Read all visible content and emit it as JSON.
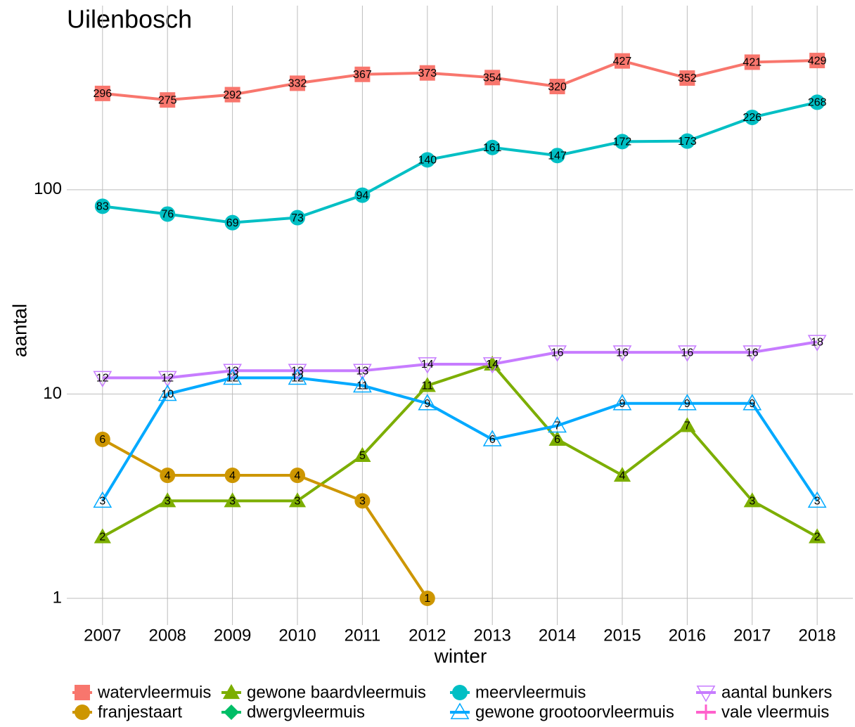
{
  "chart_data": {
    "type": "line",
    "title": "Uilenbosch",
    "x_label": "winter",
    "y_label": "aantal",
    "x": [
      2007,
      2008,
      2009,
      2010,
      2011,
      2012,
      2013,
      2014,
      2015,
      2016,
      2017,
      2018
    ],
    "xlim": [
      2006.45,
      2018.55
    ],
    "ylim": [
      0.74,
      580
    ],
    "yticks": [
      1,
      10,
      100
    ],
    "log_y": true,
    "grid": true,
    "legend_position": "bottom",
    "series": [
      {
        "name": "watervleermuis",
        "color": "#F8766D",
        "marker": "square",
        "values": [
          296,
          275,
          292,
          332,
          367,
          373,
          354,
          320,
          427,
          352,
          421,
          429
        ]
      },
      {
        "name": "gewone baardvleermuis",
        "color": "#7CAE00",
        "marker": "triangle",
        "values": [
          2,
          3,
          3,
          3,
          5,
          11,
          14,
          6,
          4,
          7,
          3,
          2
        ]
      },
      {
        "name": "meervleermuis",
        "color": "#00BFC4",
        "marker": "circle",
        "values": [
          83,
          76,
          69,
          73,
          94,
          140,
          161,
          147,
          172,
          173,
          226,
          268
        ]
      },
      {
        "name": "aantal bunkers",
        "color": "#C77CFF",
        "marker": "triangle-down-open",
        "values": [
          12,
          12,
          13,
          13,
          13,
          14,
          14,
          16,
          16,
          16,
          16,
          18
        ]
      },
      {
        "name": "franjestaart",
        "color": "#CD9600",
        "marker": "circle",
        "values": [
          6,
          4,
          4,
          4,
          3,
          1,
          null,
          null,
          null,
          null,
          null,
          null
        ]
      },
      {
        "name": "dwergvleermuis",
        "color": "#00BE67",
        "marker": "diamond",
        "values": [
          null,
          null,
          null,
          null,
          null,
          null,
          null,
          null,
          null,
          null,
          null,
          null
        ]
      },
      {
        "name": "gewone grootoorvleermuis",
        "color": "#00A9FF",
        "marker": "triangle-open",
        "values": [
          3,
          10,
          12,
          12,
          11,
          9,
          6,
          7,
          9,
          9,
          9,
          3
        ]
      },
      {
        "name": "vale vleermuis",
        "color": "#FF61CC",
        "marker": "plus",
        "values": [
          null,
          null,
          null,
          null,
          null,
          null,
          null,
          null,
          null,
          null,
          null,
          null
        ]
      }
    ]
  }
}
